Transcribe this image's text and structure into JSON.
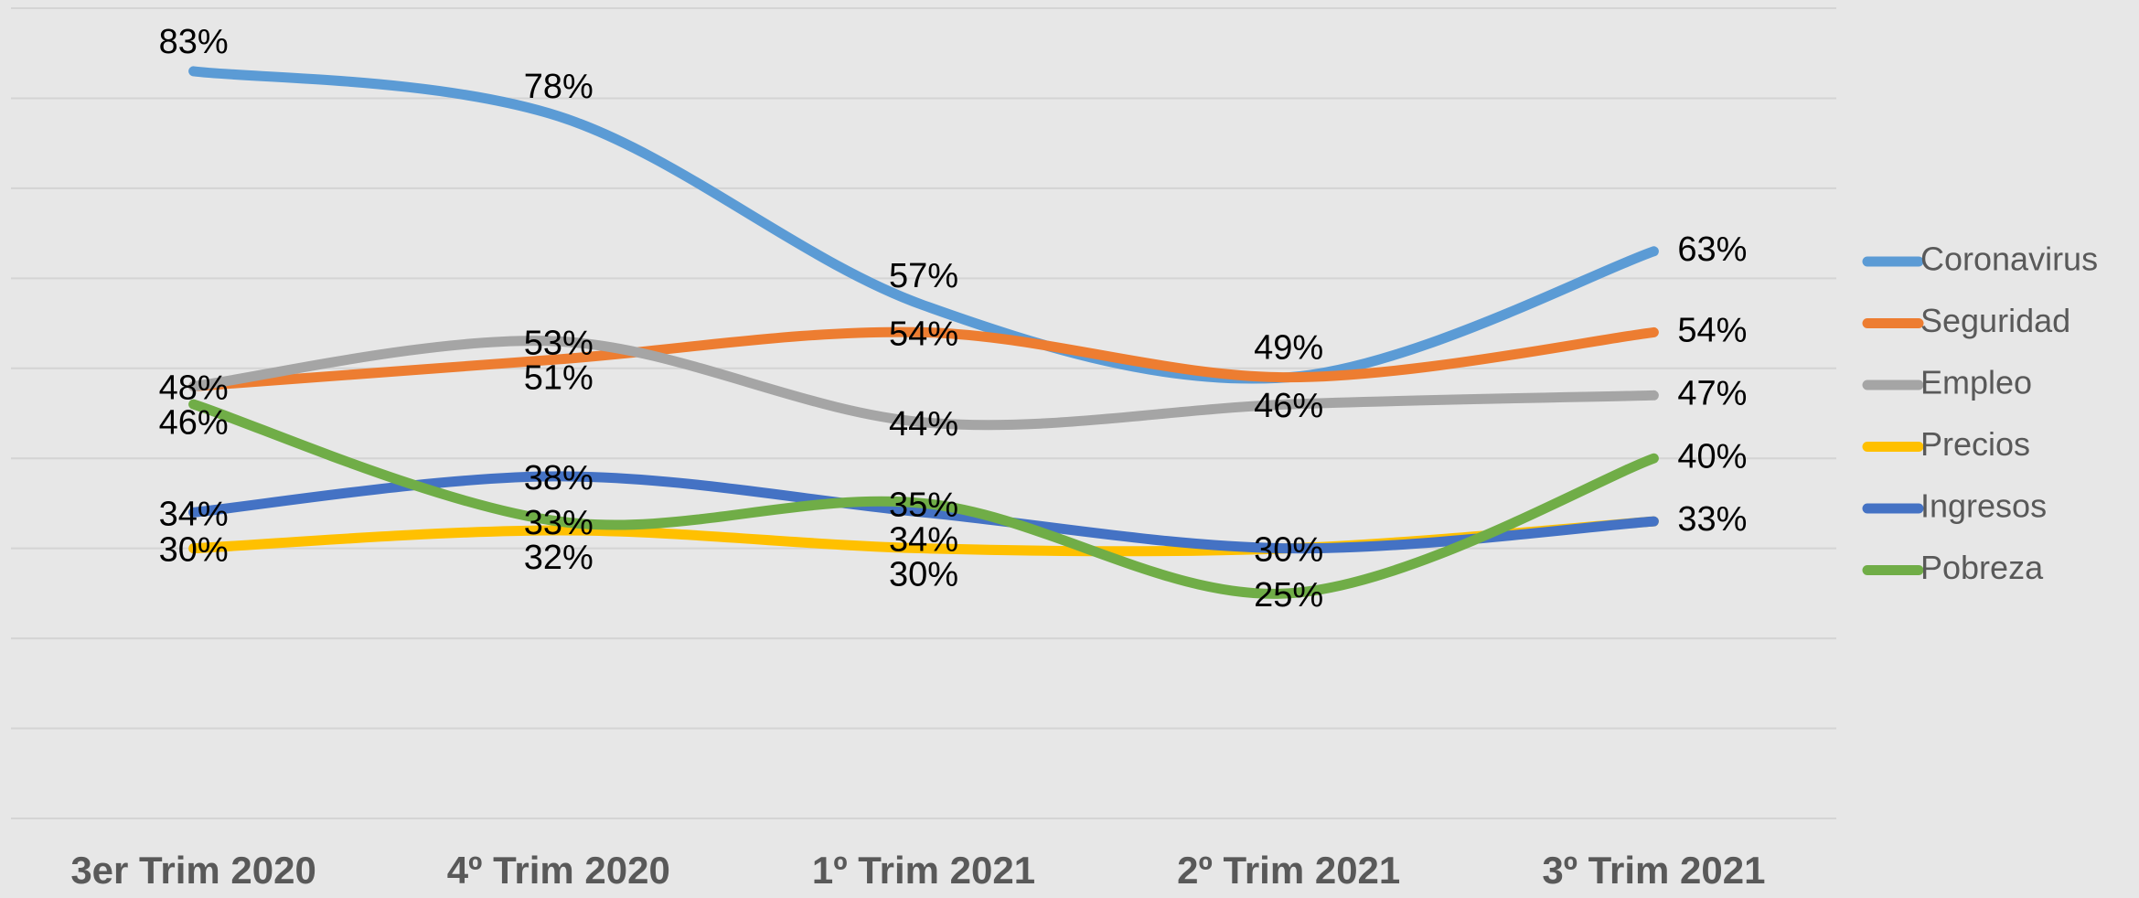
{
  "chart_data": {
    "type": "line",
    "categories": [
      "3er Trim 2020",
      "4º Trim 2020",
      "1º Trim 2021",
      "2º Trim 2021",
      "3º Trim 2021"
    ],
    "series": [
      {
        "name": "Coronavirus",
        "color": "#5b9bd5",
        "values": [
          83,
          78,
          57,
          49,
          63
        ],
        "value_labels": [
          "83%",
          "78%",
          "57%",
          "49%",
          "63%"
        ]
      },
      {
        "name": "Seguridad",
        "color": "#ed7d31",
        "values": [
          48,
          51,
          54,
          49,
          54
        ],
        "value_labels": [
          "48%",
          "51%",
          "54%",
          null,
          "54%"
        ]
      },
      {
        "name": "Empleo",
        "color": "#a5a5a5",
        "values": [
          48,
          53,
          44,
          46,
          47
        ],
        "value_labels": [
          null,
          "53%",
          "44%",
          "46%",
          "47%"
        ]
      },
      {
        "name": "Precios",
        "color": "#ffc000",
        "values": [
          30,
          32,
          30,
          30,
          33
        ],
        "value_labels": [
          "30%",
          "32%",
          "30%",
          null,
          null
        ]
      },
      {
        "name": "Ingresos",
        "color": "#4472c4",
        "values": [
          34,
          38,
          34,
          30,
          33
        ],
        "value_labels": [
          "34%",
          "38%",
          "34%",
          "30%",
          "33%"
        ]
      },
      {
        "name": "Pobreza",
        "color": "#70ad47",
        "values": [
          46,
          33,
          35,
          25,
          40
        ],
        "value_labels": [
          "46%",
          "33%",
          "35%",
          "25%",
          "40%"
        ]
      }
    ],
    "ylim": [
      0,
      90
    ],
    "yticks": [
      0,
      10,
      20,
      30,
      40,
      50,
      60,
      70,
      80,
      90
    ],
    "grid": true,
    "legend": "right"
  }
}
